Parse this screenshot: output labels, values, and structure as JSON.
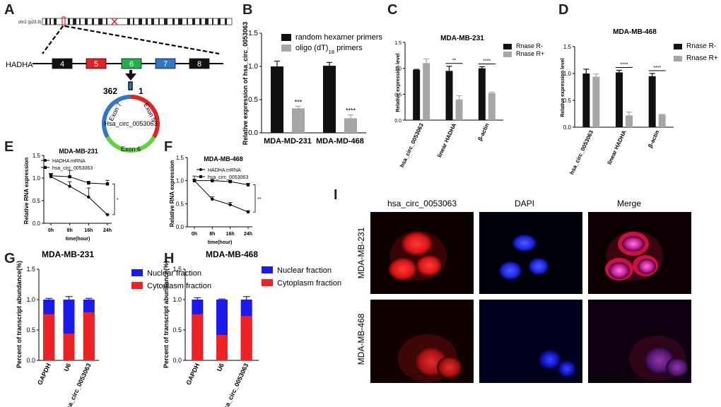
{
  "panel_letters": {
    "A": "A",
    "B": "B",
    "C": "C",
    "D": "D",
    "E": "E",
    "F": "F",
    "G": "G",
    "H": "H",
    "I": "I"
  },
  "panel_a": {
    "chromosome_label": "chr2 (p23.3)",
    "gene": "HADHA",
    "exons": [
      "4",
      "5",
      "6",
      "7",
      "8"
    ],
    "exon_colors": [
      "#111111",
      "#e32222",
      "#1fb24a",
      "#2f78c4",
      "#111111"
    ],
    "circ_numbers": [
      "362",
      "1"
    ],
    "circ_segments": [
      "Exon 7",
      "Exon 5",
      "Exon 6"
    ],
    "circ_name": "Hsa_circ_0053063"
  },
  "chart_data": [
    {
      "id": "B",
      "type": "bar",
      "ylabel": "Relative expression of hsa_circ_0053063",
      "categories": [
        "MDA-MD-231",
        "MDA-MD-468"
      ],
      "series": [
        {
          "name": "random hexamer primers",
          "values": [
            1.0,
            1.01
          ],
          "errors": [
            0.08,
            0.05
          ],
          "color": "#111111"
        },
        {
          "name": "oligo (dT)18 primers",
          "values": [
            0.37,
            0.22
          ],
          "errors": [
            0.03,
            0.05
          ],
          "color": "#a6a6a6"
        }
      ],
      "significance": [
        "***",
        "****"
      ],
      "ylim": [
        0,
        1.5
      ],
      "yticks": [
        "0.0",
        "0.5",
        "1.0",
        "1.5"
      ]
    },
    {
      "id": "C",
      "type": "bar",
      "title": "MDA-MB-231",
      "ylabel": "Relative expression level",
      "categories": [
        "hsa_circ_0053063",
        "linear HADHA",
        "β-actin"
      ],
      "series": [
        {
          "name": "Rnase R-",
          "values": [
            0.97,
            0.95,
            1.0
          ],
          "errors": [
            0.01,
            0.09,
            0.03
          ],
          "color": "#111111"
        },
        {
          "name": "Rnase R+",
          "values": [
            1.1,
            0.4,
            0.52
          ],
          "errors": [
            0.08,
            0.07,
            0.02
          ],
          "color": "#a6a6a6"
        }
      ],
      "significance": [
        "",
        "**",
        "****"
      ],
      "ylim": [
        0,
        1.5
      ],
      "yticks": [
        "0.0",
        "0.5",
        "1.0",
        "1.5"
      ]
    },
    {
      "id": "D",
      "type": "bar",
      "title": "MDA-MB-468",
      "ylabel": "Relative expression level",
      "categories": [
        "hsa_circ_0053063",
        "linear HADHA",
        "β-actin"
      ],
      "series": [
        {
          "name": "Rnase R-",
          "values": [
            1.0,
            1.02,
            0.95
          ],
          "errors": [
            0.08,
            0.04,
            0.05
          ],
          "color": "#111111"
        },
        {
          "name": "Rnase R+",
          "values": [
            0.94,
            0.22,
            0.23
          ],
          "errors": [
            0.05,
            0.06,
            0.01
          ],
          "color": "#a6a6a6"
        }
      ],
      "significance": [
        "",
        "****",
        "****"
      ],
      "ylim": [
        0,
        1.5
      ],
      "yticks": [
        "0.0",
        "0.5",
        "1.0",
        "1.5"
      ]
    },
    {
      "id": "E",
      "type": "line",
      "title": "MDA-MB-231",
      "xlabel": "time(hour)",
      "ylabel": "Relative RNA expression",
      "x": [
        "0h",
        "8h",
        "16h",
        "24h"
      ],
      "series": [
        {
          "name": "HADHA mRNA",
          "marker": "circle",
          "values": [
            1.03,
            0.82,
            0.58,
            0.19
          ],
          "errors": [
            0.07,
            0.1,
            0.2,
            0.01
          ]
        },
        {
          "name": "hsa_circ_0053063",
          "marker": "square",
          "values": [
            1.05,
            1.03,
            0.89,
            0.87
          ],
          "errors": [
            0.04,
            0.14,
            0.04,
            0.08
          ]
        }
      ],
      "significance": "*",
      "ylim": [
        0,
        1.5
      ],
      "yticks": [
        "0.0",
        "0.5",
        "1.0",
        "1.5"
      ]
    },
    {
      "id": "F",
      "type": "line",
      "title": "MDA-MB-468",
      "xlabel": "time(hour)",
      "ylabel": "Relative RNA expression",
      "x": [
        "0h",
        "8h",
        "16h",
        "24h"
      ],
      "series": [
        {
          "name": "HADHA mRNA",
          "marker": "circle",
          "values": [
            1.0,
            0.6,
            0.48,
            0.32
          ],
          "errors": [
            0.1,
            0.05,
            0.05,
            0.03
          ]
        },
        {
          "name": "hsa_circ_0053063",
          "marker": "square",
          "values": [
            1.0,
            1.0,
            0.98,
            0.91
          ],
          "errors": [
            0.03,
            0.02,
            0.03,
            0.03
          ]
        }
      ],
      "significance": "**",
      "ylim": [
        0,
        1.5
      ],
      "yticks": [
        "0.0",
        "0.5",
        "1.0",
        "1.5"
      ]
    },
    {
      "id": "G",
      "type": "bar",
      "title": "MDA-MB-231",
      "ylabel": "Percent of transcript abundance(%)",
      "categories": [
        "GAPDH",
        "U6",
        "hsa_circ_0053063"
      ],
      "series": [
        {
          "name": "Nuclear fraction",
          "values": [
            1.0,
            1.0,
            1.0
          ],
          "errors": [
            0.02,
            0.05,
            0.02
          ],
          "color": "#1a1aee"
        },
        {
          "name": "Cytoplasm fraction",
          "values": [
            0.76,
            0.44,
            0.79
          ],
          "color": "#ee2222"
        }
      ],
      "ylim": [
        0,
        1.5
      ],
      "yticks": [
        "0.0",
        "0.5",
        "1.0",
        "1.5"
      ]
    },
    {
      "id": "H",
      "type": "bar",
      "title": "MDA-MB-468",
      "ylabel": "Percent of transcript abundance(%)",
      "categories": [
        "GAPDH",
        "U6",
        "hsa_circ_0053063"
      ],
      "series": [
        {
          "name": "Nuclear fraction",
          "values": [
            1.0,
            1.0,
            1.0
          ],
          "errors": [
            0.03,
            0.01,
            0.05
          ],
          "color": "#1a1aee"
        },
        {
          "name": "Cytoplasm fraction",
          "values": [
            0.76,
            0.42,
            0.73
          ],
          "color": "#ee2222"
        }
      ],
      "ylim": [
        0,
        1.5
      ],
      "yticks": [
        "0.0",
        "0.5",
        "1.0",
        "1.5"
      ]
    }
  ],
  "panel_i": {
    "columns": [
      "hsa_circ_0053063",
      "DAPI",
      "Merge"
    ],
    "rows": [
      "MDA-MB-231",
      "MDA-MB-468"
    ]
  }
}
